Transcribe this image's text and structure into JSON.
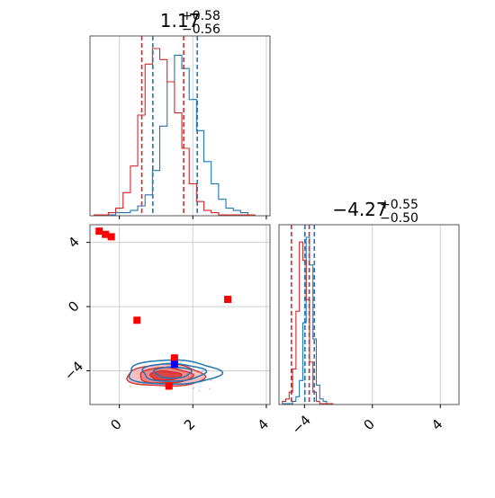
{
  "chart_data": {
    "type": "corner",
    "panels": [
      {
        "id": "hist-param1",
        "type": "histogram",
        "title": {
          "main": "1.17",
          "sup": "+0.58",
          "sub": "−0.56"
        },
        "xlim": [
          -0.8,
          4.1
        ],
        "x_ticks": [
          0,
          2,
          4
        ],
        "bin_edges": [
          -0.7,
          -0.5,
          -0.3,
          -0.1,
          0.1,
          0.3,
          0.5,
          0.7,
          0.9,
          1.1,
          1.3,
          1.5,
          1.7,
          1.9,
          2.1,
          2.3,
          2.5,
          2.7,
          2.9,
          3.1,
          3.3,
          3.5,
          3.7
        ],
        "series": [
          {
            "name": "",
            "color": "#1f77b4",
            "counts": [
              0,
              0,
              0,
              1,
              1,
              2,
              4,
              9,
              20,
              40,
              60,
              72,
              66,
              52,
              38,
              24,
              14,
              7,
              3,
              2,
              1,
              0
            ]
          },
          {
            "name": "",
            "color": "#d62728",
            "counts": [
              0,
              0,
              1,
              3,
              10,
              22,
              45,
              68,
              75,
              70,
              60,
              46,
              30,
              14,
              6,
              2,
              1,
              0,
              0,
              0,
              0,
              0
            ]
          }
        ],
        "quantile_lines": [
          {
            "color": "#1f77b4",
            "values": [
              0.91,
              2.12
            ]
          },
          {
            "color": "#d62728",
            "values": [
              0.61,
              1.75
            ]
          }
        ]
      },
      {
        "id": "scatter-contour",
        "type": "scatter-contour",
        "xlim": [
          -0.8,
          4.1
        ],
        "ylim": [
          -6.1,
          5.1
        ],
        "x_ticks": [
          0,
          2,
          4
        ],
        "y_ticks": [
          4,
          0,
          -4
        ],
        "contours": [
          {
            "color": "#d62728",
            "filled": true,
            "center": [
              1.25,
              -4.3
            ],
            "levels": [
              [
                1.05,
                0.68
              ],
              [
                0.72,
                0.48
              ],
              [
                0.42,
                0.28
              ]
            ]
          },
          {
            "color": "#1f77b4",
            "filled": false,
            "center": [
              1.45,
              -4.1
            ],
            "levels": [
              [
                1.25,
                0.75
              ],
              [
                0.85,
                0.55
              ],
              [
                0.5,
                0.35
              ]
            ]
          }
        ],
        "markers": [
          {
            "x": -0.55,
            "y": 4.7,
            "color": "#ff0000"
          },
          {
            "x": -0.38,
            "y": 4.5,
            "color": "#ff0000"
          },
          {
            "x": -0.22,
            "y": 4.35,
            "color": "#ff0000"
          },
          {
            "x": 0.48,
            "y": -0.85,
            "color": "#ff0000"
          },
          {
            "x": 2.95,
            "y": 0.45,
            "color": "#ff0000"
          },
          {
            "x": 1.5,
            "y": -3.2,
            "color": "#ff0000"
          },
          {
            "x": 1.35,
            "y": -4.95,
            "color": "#ff0000"
          },
          {
            "x": 1.5,
            "y": -3.6,
            "color": "#0000ff"
          }
        ]
      },
      {
        "id": "hist-param2",
        "type": "histogram",
        "title": {
          "main": "−4.27",
          "sup": "+0.55",
          "sub": "−0.50"
        },
        "xlim": [
          -5.5,
          5.1
        ],
        "x_ticks": [
          -4,
          0,
          4
        ],
        "bin_edges": [
          -5.3,
          -5.1,
          -4.9,
          -4.7,
          -4.5,
          -4.3,
          -4.1,
          -3.9,
          -3.7,
          -3.5,
          -3.3,
          -3.1,
          -2.9,
          -2.7,
          -2.5,
          -2.3
        ],
        "series": [
          {
            "name": "",
            "color": "#1f77b4",
            "counts": [
              0,
              0,
              0,
              1,
              3,
              10,
              35,
              72,
              60,
              28,
              8,
              2,
              1,
              0,
              0
            ]
          },
          {
            "name": "",
            "color": "#d62728",
            "counts": [
              1,
              2,
              5,
              15,
              40,
              70,
              62,
              45,
              18,
              5,
              1,
              0,
              0,
              0,
              0
            ]
          }
        ],
        "quantile_lines": [
          {
            "color": "#1f77b4",
            "values": [
              -3.97,
              -3.42
            ]
          },
          {
            "color": "#d62728",
            "values": [
              -4.77,
              -3.72
            ]
          }
        ]
      }
    ]
  }
}
